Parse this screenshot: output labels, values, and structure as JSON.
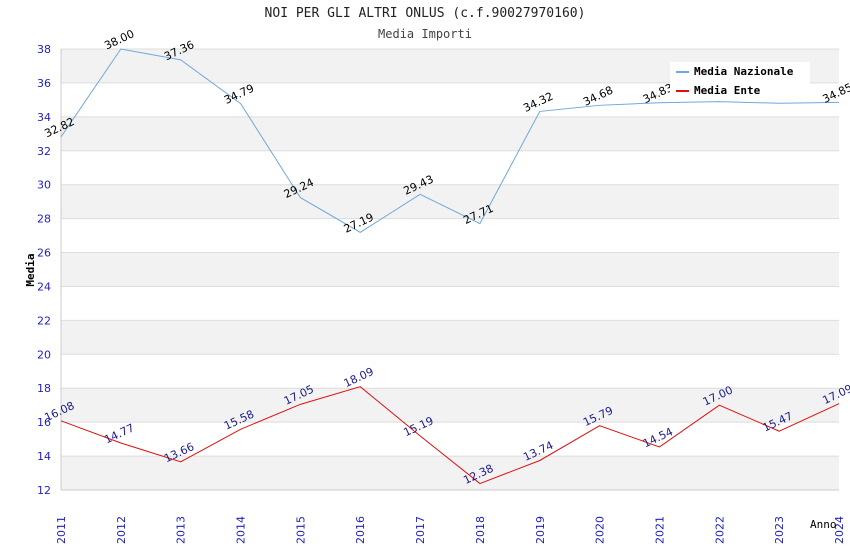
{
  "chart_data": {
    "type": "line",
    "title": "NOI PER GLI ALTRI ONLUS (c.f.90027970160)",
    "subtitle": "Media Importi",
    "xlabel": "Anno",
    "ylabel": "Media",
    "ylim": [
      12,
      38
    ],
    "yticks": [
      12,
      14,
      16,
      18,
      20,
      22,
      24,
      26,
      28,
      30,
      32,
      34,
      36,
      38
    ],
    "categories": [
      "2011",
      "2012",
      "2013",
      "2014",
      "2015",
      "2016",
      "2017",
      "2018",
      "2019",
      "2020",
      "2021",
      "2022",
      "2023",
      "2024"
    ],
    "series": [
      {
        "name": "Media Nazionale",
        "color": "#6fa8dc",
        "values": [
          32.82,
          38.0,
          37.36,
          34.79,
          29.24,
          27.19,
          29.43,
          27.71,
          34.32,
          34.68,
          34.83,
          34.9,
          34.8,
          34.85
        ],
        "labels": [
          "32.82",
          "38.00",
          "37.36",
          "34.79",
          "29.24",
          "27.19",
          "29.43",
          "27.71",
          "34.32",
          "34.68",
          "34.83",
          "",
          "",
          "34.85"
        ]
      },
      {
        "name": "Media Ente",
        "color": "#e01010",
        "values": [
          16.08,
          14.77,
          13.66,
          15.58,
          17.05,
          18.09,
          15.19,
          12.38,
          13.74,
          15.79,
          14.54,
          17.0,
          15.47,
          17.09
        ],
        "labels": [
          "16.08",
          "14.77",
          "13.66",
          "15.58",
          "17.05",
          "18.09",
          "15.19",
          "12.38",
          "13.74",
          "15.79",
          "14.54",
          "17.00",
          "15.47",
          "17.09"
        ]
      }
    ],
    "legend": "top-right"
  }
}
